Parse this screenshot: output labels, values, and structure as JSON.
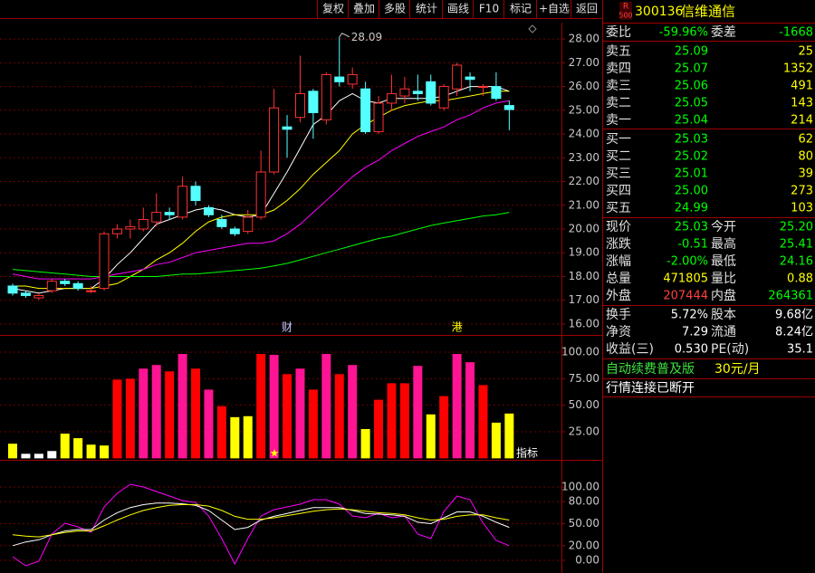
{
  "toolbar": [
    "复权",
    "叠加",
    "多股",
    "统计",
    "画线",
    "F10",
    "标记",
    "+自选",
    "返回"
  ],
  "kline": {
    "type": "candlestick",
    "open": [
      17.6,
      17.3,
      17.1,
      17.4,
      17.8,
      17.7,
      17.4,
      17.5,
      19.8,
      20.0,
      20.0,
      20.3,
      20.7,
      20.5,
      21.8,
      20.9,
      20.4,
      20.0,
      19.9,
      20.5,
      22.4,
      24.3,
      24.7,
      25.8,
      24.6,
      26.4,
      26.1,
      25.9,
      24.1,
      25.3,
      25.6,
      25.8,
      26.2,
      25.1,
      25.9,
      26.4,
      26.0,
      26.0,
      25.2
    ],
    "high": [
      17.7,
      17.4,
      17.3,
      17.9,
      17.9,
      17.8,
      17.6,
      19.9,
      20.2,
      20.4,
      20.9,
      21.5,
      20.9,
      22.2,
      22.0,
      21.0,
      20.6,
      20.1,
      20.8,
      23.3,
      25.9,
      24.8,
      27.3,
      25.9,
      26.6,
      28.09,
      26.8,
      26.2,
      25.6,
      26.5,
      26.4,
      26.5,
      26.5,
      26.1,
      27.0,
      26.6,
      26.1,
      26.6,
      25.41
    ],
    "low": [
      17.2,
      17.1,
      17.0,
      17.3,
      17.6,
      17.4,
      17.3,
      17.4,
      19.6,
      19.6,
      19.9,
      20.1,
      20.4,
      20.4,
      21.0,
      20.5,
      20.0,
      19.7,
      19.8,
      20.4,
      22.3,
      23.0,
      24.5,
      23.8,
      24.4,
      26.0,
      25.9,
      24.0,
      24.0,
      25.0,
      25.3,
      25.4,
      25.2,
      25.0,
      25.6,
      25.8,
      25.6,
      25.4,
      24.16
    ],
    "close": [
      17.3,
      17.2,
      17.2,
      17.8,
      17.7,
      17.5,
      17.4,
      19.8,
      20.0,
      20.1,
      20.4,
      20.7,
      20.6,
      21.8,
      21.2,
      20.6,
      20.1,
      19.8,
      20.5,
      22.4,
      25.1,
      24.2,
      25.7,
      24.9,
      26.5,
      26.2,
      26.5,
      24.1,
      25.3,
      25.7,
      25.9,
      25.7,
      25.3,
      26.0,
      26.9,
      26.3,
      26.0,
      25.5,
      25.03
    ],
    "ma": [
      {
        "color": "#ffffff",
        "values": [
          17.5,
          17.4,
          17.3,
          17.4,
          17.5,
          17.5,
          17.5,
          17.9,
          18.5,
          19.0,
          19.6,
          20.2,
          20.4,
          20.6,
          20.8,
          20.9,
          20.8,
          20.6,
          20.5,
          20.6,
          21.5,
          22.4,
          23.4,
          24.4,
          24.8,
          25.4,
          25.7,
          25.4,
          25.3,
          25.5,
          25.5,
          25.5,
          25.5,
          25.6,
          25.8,
          26.0,
          26.0,
          26.0,
          25.8
        ]
      },
      {
        "color": "#ffff00",
        "values": [
          17.6,
          17.6,
          17.5,
          17.5,
          17.5,
          17.5,
          17.5,
          17.6,
          17.7,
          18.0,
          18.3,
          18.7,
          19.0,
          19.4,
          19.9,
          20.3,
          20.5,
          20.6,
          20.6,
          20.6,
          20.8,
          21.2,
          21.7,
          22.3,
          22.8,
          23.3,
          24.0,
          24.4,
          24.7,
          25.0,
          25.2,
          25.3,
          25.4,
          25.4,
          25.5,
          25.6,
          25.7,
          25.8,
          25.8
        ]
      },
      {
        "color": "#ff00ff",
        "values": [
          18.1,
          18.0,
          17.9,
          17.9,
          17.9,
          17.9,
          17.9,
          18.0,
          18.1,
          18.2,
          18.3,
          18.5,
          18.6,
          18.8,
          19.0,
          19.1,
          19.2,
          19.3,
          19.4,
          19.4,
          19.5,
          19.8,
          20.2,
          20.7,
          21.2,
          21.7,
          22.2,
          22.6,
          22.9,
          23.3,
          23.6,
          23.9,
          24.1,
          24.3,
          24.6,
          24.8,
          25.1,
          25.3,
          25.4
        ]
      },
      {
        "color": "#00ff00",
        "values": [
          18.3,
          18.25,
          18.2,
          18.15,
          18.1,
          18.05,
          18.0,
          18.0,
          18.0,
          18.0,
          18.0,
          18.0,
          18.05,
          18.1,
          18.1,
          18.15,
          18.2,
          18.25,
          18.3,
          18.35,
          18.45,
          18.55,
          18.7,
          18.85,
          19.0,
          19.15,
          19.3,
          19.45,
          19.6,
          19.7,
          19.85,
          20.0,
          20.15,
          20.25,
          20.35,
          20.45,
          20.55,
          20.6,
          20.7
        ]
      }
    ],
    "ylim": [
      15.54,
      28.69
    ],
    "yticks": [
      {
        "value": 16,
        "label": "16.00"
      },
      {
        "value": 17,
        "label": "17.00"
      },
      {
        "value": 18,
        "label": "18.00"
      },
      {
        "value": 19,
        "label": "19.00"
      },
      {
        "value": 20,
        "label": "20.00"
      },
      {
        "value": 21,
        "label": "21.00"
      },
      {
        "value": 22,
        "label": "22.00"
      },
      {
        "value": 23,
        "label": "23.00"
      },
      {
        "value": 24,
        "label": "24.00"
      },
      {
        "value": 25,
        "label": "25.00"
      },
      {
        "value": 26,
        "label": "26.00"
      },
      {
        "value": 27,
        "label": "27.00"
      },
      {
        "value": 28,
        "label": "28.00"
      }
    ],
    "annotation": "28.09",
    "events": [
      null,
      null,
      null,
      null,
      null,
      null,
      null,
      null,
      null,
      null,
      null,
      null,
      null,
      null,
      null,
      null,
      null,
      null,
      null,
      null,
      null,
      "财",
      null,
      null,
      null,
      null,
      null,
      null,
      null,
      null,
      null,
      null,
      null,
      null,
      "港",
      null,
      null,
      null,
      null
    ]
  },
  "bars": {
    "type": "bar",
    "values": [
      13.8,
      4.3,
      4.3,
      6.9,
      23.3,
      19.0,
      12.9,
      12.1,
      74.1,
      75.0,
      84.5,
      87.9,
      81.9,
      98.3,
      84.5,
      64.7,
      49.1,
      38.8,
      39.7,
      98.3,
      97.4,
      79.3,
      84.5,
      64.7,
      98.3,
      79.3,
      87.9,
      27.6,
      55.2,
      70.7,
      70.7,
      87.1,
      41.4,
      58.6,
      98.3,
      90.5,
      69.0,
      33.6,
      42.2
    ],
    "colors": [
      "#ffff00",
      "#ffffff",
      "#ffffff",
      "#ffffff",
      "#ffff00",
      "#ffff00",
      "#ffff00",
      "#ffff00",
      "#ff0000",
      "#ff0000",
      "#ff1493",
      "#ff1493",
      "#ff0000",
      "#ff1493",
      "#ff0000",
      "#ff1493",
      "#ff0000",
      "#ffff00",
      "#ffff00",
      "#ff0000",
      "#ff1493",
      "#ff0000",
      "#ff1493",
      "#ff0000",
      "#ff1493",
      "#ff0000",
      "#ff1493",
      "#ffff00",
      "#ff0000",
      "#ff0000",
      "#ff0000",
      "#ff1493",
      "#ffff00",
      "#ff0000",
      "#ff1493",
      "#ff1493",
      "#ff0000",
      "#ffff00",
      "#ffff00"
    ],
    "ylim": [
      -1.4,
      114.5
    ],
    "yticks": [
      {
        "value": 25,
        "label": "25.00"
      },
      {
        "value": 50,
        "label": "50.00"
      },
      {
        "value": 75,
        "label": "75.00"
      },
      {
        "value": 100,
        "label": "100.00"
      }
    ],
    "ticker": [
      "★",
      "指标"
    ]
  },
  "osc": {
    "type": "line",
    "series": [
      {
        "color": "#ff00ff",
        "values": [
          4.9,
          -7.4,
          -1.2,
          35.8,
          50.6,
          45.7,
          38.3,
          72.8,
          91.4,
          103.7,
          100,
          93.8,
          87.7,
          81.5,
          79.0,
          60.5,
          29.6,
          -4.9,
          29.6,
          60.5,
          69.1,
          72.8,
          76.5,
          82.7,
          82.7,
          76.5,
          60.5,
          58.0,
          64.2,
          58.0,
          60.5,
          35.8,
          29.6,
          66.7,
          87.7,
          82.7,
          50.6,
          27.2,
          20
        ]
      },
      {
        "color": "#ffffff",
        "values": [
          20,
          25,
          28,
          35,
          40,
          42,
          42,
          55,
          65,
          72,
          76,
          78,
          78,
          77,
          75,
          68,
          55,
          42,
          45,
          55,
          60,
          64,
          68,
          72,
          72,
          72,
          68,
          64,
          63,
          62,
          60,
          52,
          50,
          58,
          66,
          66,
          60,
          52,
          45
        ]
      },
      {
        "color": "#ffff00",
        "values": [
          35,
          33,
          32,
          35,
          38,
          40,
          40,
          47,
          55,
          62,
          68,
          72,
          75,
          76,
          76,
          74,
          68,
          60,
          56,
          56,
          58,
          61,
          64,
          67,
          69,
          70,
          69,
          67,
          65,
          64,
          62,
          58,
          55,
          56,
          60,
          62,
          62,
          58,
          55
        ]
      }
    ],
    "ylim": [
      -17.3,
      134.6
    ],
    "yticks": [
      {
        "value": 0,
        "label": "0.00"
      },
      {
        "value": 20,
        "label": "20.00"
      },
      {
        "value": 50,
        "label": "50.00"
      },
      {
        "value": 80,
        "label": "80.00"
      },
      {
        "value": 100,
        "label": "100.00"
      }
    ]
  },
  "quote": {
    "badge": [
      "R",
      "500"
    ],
    "code": "300136",
    "name": "信维通信",
    "rows": [
      {
        "l1": "委比",
        "v1": "-59.96%",
        "c1": "#00ff00",
        "l2": "委差",
        "v2": "-1668",
        "c2": "#00ff00"
      },
      {
        "l1": "卖五",
        "v1": "25.09",
        "c1": "#00ff00",
        "v2": "25",
        "c2": "#ffff00"
      },
      {
        "l1": "卖四",
        "v1": "25.07",
        "c1": "#00ff00",
        "v2": "1352",
        "c2": "#ffff00"
      },
      {
        "l1": "卖三",
        "v1": "25.06",
        "c1": "#00ff00",
        "v2": "491",
        "c2": "#ffff00"
      },
      {
        "l1": "卖二",
        "v1": "25.05",
        "c1": "#00ff00",
        "v2": "143",
        "c2": "#ffff00"
      },
      {
        "l1": "卖一",
        "v1": "25.04",
        "c1": "#00ff00",
        "v2": "214",
        "c2": "#ffff00"
      },
      {
        "l1": "买一",
        "v1": "25.03",
        "c1": "#00ff00",
        "v2": "62",
        "c2": "#ffff00"
      },
      {
        "l1": "买二",
        "v1": "25.02",
        "c1": "#00ff00",
        "v2": "80",
        "c2": "#ffff00"
      },
      {
        "l1": "买三",
        "v1": "25.01",
        "c1": "#00ff00",
        "v2": "39",
        "c2": "#ffff00"
      },
      {
        "l1": "买四",
        "v1": "25.00",
        "c1": "#00ff00",
        "v2": "273",
        "c2": "#ffff00"
      },
      {
        "l1": "买五",
        "v1": "24.99",
        "c1": "#00ff00",
        "v2": "103",
        "c2": "#ffff00"
      },
      {
        "l1": "现价",
        "v1": "25.03",
        "c1": "#00ff00",
        "l2": "今开",
        "v2": "25.20",
        "c2": "#00ff00"
      },
      {
        "l1": "涨跌",
        "v1": "-0.51",
        "c1": "#00ff00",
        "l2": "最高",
        "v2": "25.41",
        "c2": "#00ff00"
      },
      {
        "l1": "涨幅",
        "v1": "-2.00%",
        "c1": "#00ff00",
        "l2": "最低",
        "v2": "24.16",
        "c2": "#00ff00"
      },
      {
        "l1": "总量",
        "v1": "471805",
        "c1": "#ffff00",
        "l2": "量比",
        "v2": "0.88",
        "c2": "#ffff00"
      },
      {
        "l1": "外盘",
        "v1": "207444",
        "c1": "#ff4040",
        "l2": "内盘",
        "v2": "264361",
        "c2": "#00ff00"
      },
      {
        "l1": "换手",
        "v1": "5.72%",
        "c1": "#ffffff",
        "l2": "股本",
        "v2": "9.68亿",
        "c2": "#ffffff"
      },
      {
        "l1": "净资",
        "v1": "7.29",
        "c1": "#ffffff",
        "l2": "流通",
        "v2": "8.24亿",
        "c2": "#ffffff"
      },
      {
        "l1": "收益(三)",
        "v1": "0.530",
        "c1": "#ffffff",
        "l2": "PE(动)",
        "v2": "35.1",
        "c2": "#ffffff"
      }
    ],
    "promo": "自动续费普及版",
    "price": "30元/月",
    "status": "行情连接已断开"
  }
}
